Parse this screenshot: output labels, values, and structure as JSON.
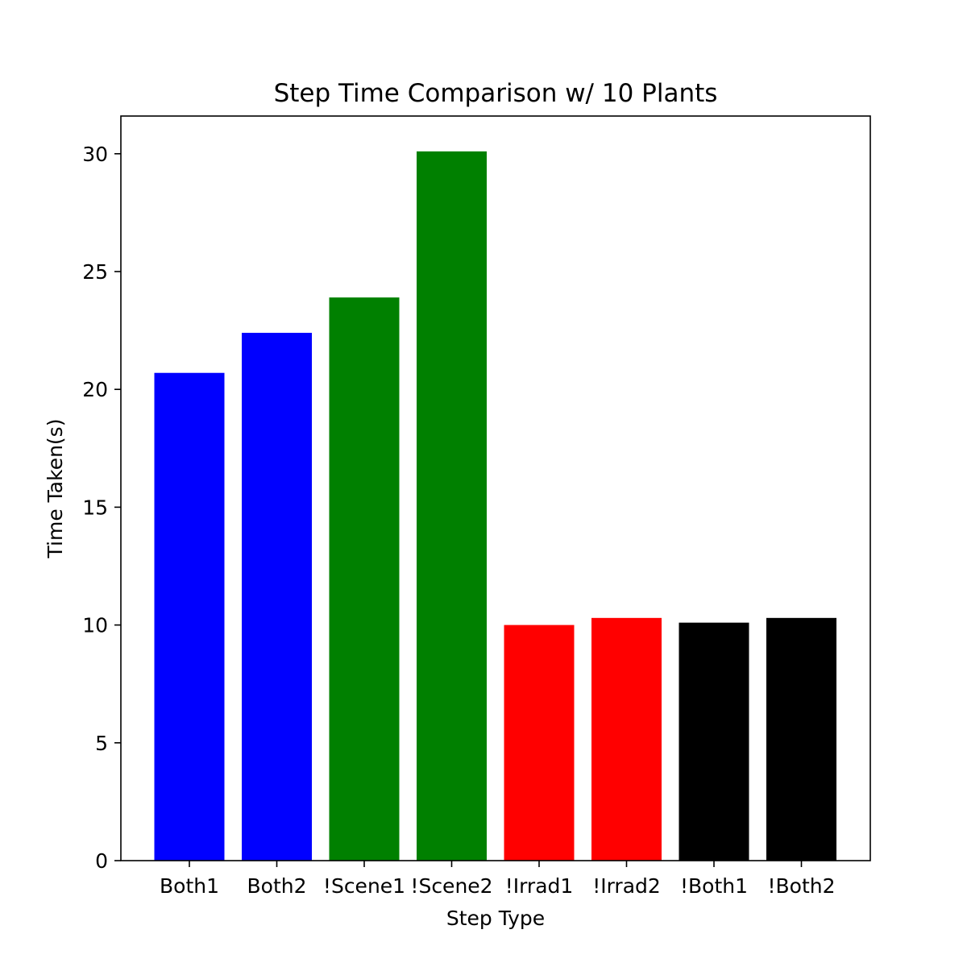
{
  "chart_data": {
    "type": "bar",
    "title": "Step Time Comparison w/ 10 Plants",
    "xlabel": "Step Type",
    "ylabel": "Time Taken(s)",
    "categories": [
      "Both1",
      "Both2",
      "!Scene1",
      "!Scene2",
      "!Irrad1",
      "!Irrad2",
      "!Both1",
      "!Both2"
    ],
    "values": [
      20.7,
      22.4,
      23.9,
      30.1,
      10.0,
      10.3,
      10.1,
      10.3
    ],
    "colors": [
      "#0000ff",
      "#0000ff",
      "#008000",
      "#008000",
      "#ff0000",
      "#ff0000",
      "#000000",
      "#000000"
    ],
    "yticks": [
      0,
      5,
      10,
      15,
      20,
      25,
      30
    ],
    "ylim": [
      0,
      31.6
    ],
    "grid": false,
    "legend": false
  }
}
